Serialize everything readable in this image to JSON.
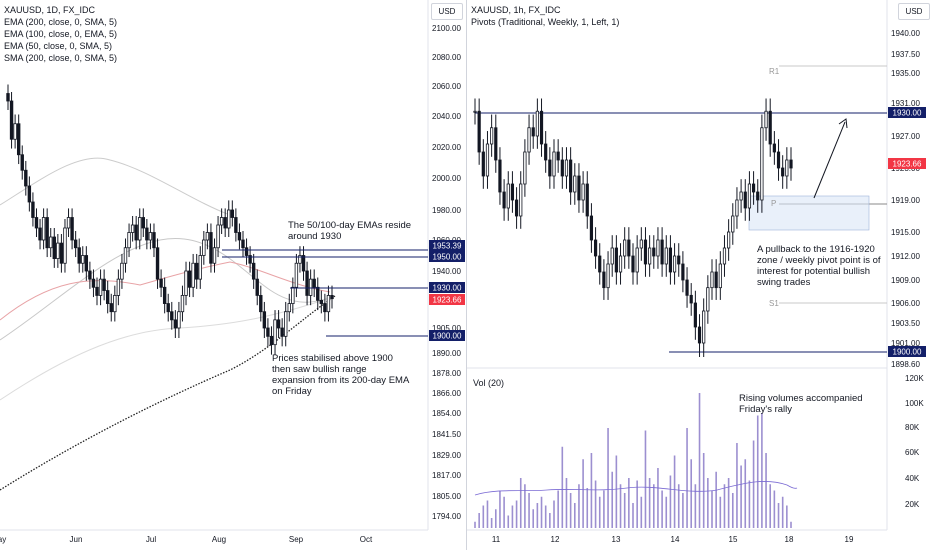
{
  "left": {
    "legend": [
      "XAUUSD, 1D, FX_IDC",
      "EMA (200, close, 0, SMA, 5)",
      "EMA (100, close, 0, EMA, 5)",
      "EMA (50, close, 0, SMA, 5)",
      "SMA (200, close, 0, SMA, 5)"
    ],
    "currency": "USD",
    "note1": [
      "The 50/100-day EMAs reside",
      "around 1930"
    ],
    "note2": [
      "Prices stabilised above 1900",
      "then saw bullish range",
      "expansion from its 200-day EMA",
      "on Friday"
    ]
  },
  "right": {
    "legend": [
      "XAUUSD, 1h, FX_IDC",
      "Pivots (Traditional, Weekly, 1, Left, 1)"
    ],
    "currency": "USD",
    "pivot_labels": {
      "r1": "R1",
      "p": "P",
      "s1": "S1"
    },
    "note1": [
      "A pullback to the 1916-1920",
      "zone / weekly pivot point is of",
      "interest for potential bullish",
      "swing trades"
    ],
    "vol_title": "Vol (20)",
    "note2": [
      "Rising volumes accompanied",
      "Friday's rally"
    ]
  },
  "colors": {
    "up": "#131722",
    "down": "#131722",
    "navy": "#131f68",
    "red": "#f23645",
    "vol": "#9c8fd0",
    "ema50": "#e8a3a6",
    "ema100": "#c8c8c8",
    "sma200": "#999999"
  },
  "chart_data": [
    {
      "type": "candlestick",
      "title": "XAUUSD, 1D, FX_IDC",
      "y_ticks": [
        2100.0,
        2080.0,
        2060.0,
        2040.0,
        2020.0,
        2000.0,
        1980.0,
        1960.0,
        1940.0,
        1905.0,
        1890.0,
        1878.0,
        1866.0,
        1854.0,
        1841.5,
        1829.0,
        1817.0,
        1805.0,
        1794.0
      ],
      "x_ticks": [
        "ay",
        "Jun",
        "Jul",
        "Aug",
        "Sep",
        "Oct"
      ],
      "price_labels": [
        {
          "value": "1953.39",
          "color": "#131f68"
        },
        {
          "value": "1950.00",
          "color": "#131f68"
        },
        {
          "value": "1930.00",
          "color": "#131f68"
        },
        {
          "value": "1923.66",
          "color": "#f23645"
        },
        {
          "value": "1900.00",
          "color": "#131f68"
        }
      ],
      "horizontal_lines": [
        1953.39,
        1950.0,
        1930.0,
        1900.0
      ],
      "closes": [
        2050,
        2025,
        2035,
        2015,
        2005,
        1995,
        1985,
        1975,
        1968,
        1960,
        1975,
        1955,
        1962,
        1948,
        1958,
        1945,
        1968,
        1975,
        1960,
        1955,
        1945,
        1950,
        1940,
        1935,
        1930,
        1925,
        1935,
        1928,
        1920,
        1915,
        1925,
        1935,
        1945,
        1955,
        1965,
        1970,
        1960,
        1975,
        1968,
        1960,
        1965,
        1955,
        1935,
        1930,
        1920,
        1915,
        1910,
        1905,
        1915,
        1925,
        1940,
        1930,
        1945,
        1935,
        1950,
        1960,
        1965,
        1945,
        1955,
        1970,
        1975,
        1968,
        1980,
        1975,
        1965,
        1960,
        1955,
        1950,
        1945,
        1935,
        1925,
        1915,
        1905,
        1900,
        1895,
        1910,
        1905,
        1900,
        1915,
        1920,
        1930,
        1945,
        1950,
        1940,
        1925,
        1935,
        1930,
        1922,
        1920,
        1915,
        1925,
        1923
      ]
    },
    {
      "type": "candlestick",
      "title": "XAUUSD, 1h, FX_IDC",
      "y_ticks": [
        1940.0,
        1937.5,
        1935.0,
        1931.0,
        1927.0,
        1923.0,
        1919.0,
        1915.0,
        1912.0,
        1909.0,
        1906.0,
        1903.5,
        1901.0,
        1898.6
      ],
      "x_ticks": [
        "11",
        "12",
        "13",
        "14",
        "15",
        "18",
        "19"
      ],
      "price_labels": [
        {
          "value": "1930.00",
          "color": "#131f68"
        },
        {
          "value": "1923.66",
          "color": "#f23645"
        },
        {
          "value": "1900.00",
          "color": "#131f68"
        }
      ],
      "pivots": {
        "R1": 1935.5,
        "P": 1919.0,
        "S1": 1906.0
      },
      "zone": [
        1916,
        1920
      ],
      "closes": [
        1930,
        1925,
        1922,
        1926,
        1928,
        1924,
        1920,
        1918,
        1921,
        1919,
        1917,
        1921,
        1925,
        1928,
        1927,
        1930,
        1926,
        1924,
        1922,
        1925,
        1924,
        1922,
        1924,
        1920,
        1922,
        1919,
        1921,
        1917,
        1914,
        1912,
        1910,
        1908,
        1911,
        1913,
        1910,
        1912,
        1914,
        1912,
        1910,
        1913,
        1914,
        1911,
        1913,
        1912,
        1914,
        1911,
        1913,
        1910,
        1912,
        1911,
        1909,
        1907,
        1906,
        1903,
        1901,
        1905,
        1908,
        1910,
        1908,
        1911,
        1913,
        1915,
        1917,
        1919,
        1920,
        1918,
        1921,
        1920,
        1919,
        1928,
        1930,
        1926,
        1925,
        1923,
        1922,
        1924,
        1923
      ],
      "volume": {
        "title": "Vol (20)",
        "y_ticks": [
          "120K",
          "100K",
          "80K",
          "60K",
          "40K",
          "20K"
        ],
        "values": [
          5,
          12,
          18,
          22,
          8,
          15,
          30,
          25,
          10,
          18,
          22,
          40,
          35,
          28,
          15,
          20,
          25,
          18,
          12,
          22,
          30,
          65,
          40,
          28,
          20,
          35,
          55,
          32,
          60,
          38,
          25,
          30,
          80,
          45,
          58,
          35,
          28,
          40,
          20,
          38,
          25,
          78,
          40,
          35,
          48,
          30,
          25,
          42,
          58,
          35,
          28,
          80,
          55,
          35,
          108,
          60,
          40,
          30,
          45,
          25,
          35,
          40,
          28,
          68,
          50,
          55,
          38,
          70,
          90,
          92,
          60,
          35,
          30,
          20,
          25,
          18,
          5
        ]
      }
    }
  ]
}
